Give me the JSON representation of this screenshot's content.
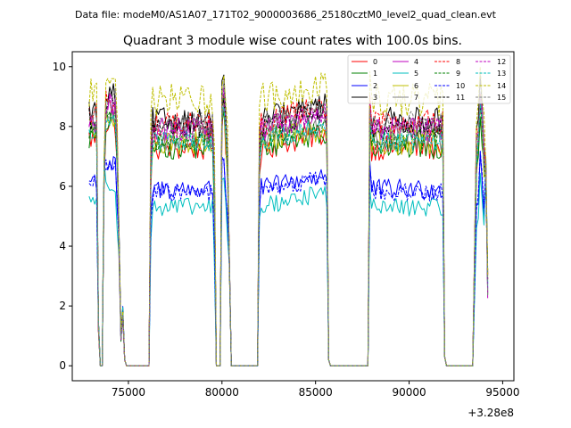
{
  "suptitle": "Data file: modeM0/AS1A07_171T02_9000003686_25180cztM0_level2_quad_clean.evt",
  "chart_data": {
    "type": "line",
    "title": "Quadrant 3 module wise count rates with 100.0s bins.",
    "xlabel": "",
    "ylabel": "",
    "x_offset_label": "+3.28e8",
    "xlim": [
      72000,
      95600
    ],
    "ylim": [
      -0.5,
      10.5
    ],
    "x_ticks": [
      75000,
      80000,
      85000,
      90000,
      95000
    ],
    "x_tick_labels": [
      "75000",
      "80000",
      "85000",
      "90000",
      "95000"
    ],
    "y_ticks": [
      0,
      2,
      4,
      6,
      8,
      10
    ],
    "y_tick_labels": [
      "0",
      "2",
      "4",
      "6",
      "8",
      "10"
    ],
    "grid": false,
    "legend_position": "top-right",
    "segments": [
      {
        "start": 72900,
        "end": 73400,
        "shape": "plateau"
      },
      {
        "start": 73400,
        "end": 73600,
        "shape": "dip"
      },
      {
        "start": 73800,
        "end": 74400,
        "shape": "plateau"
      },
      {
        "start": 74700,
        "end": 74800,
        "shape": "spike"
      },
      {
        "start": 76200,
        "end": 79600,
        "shape": "plateau"
      },
      {
        "start": 80000,
        "end": 80300,
        "shape": "plateau"
      },
      {
        "start": 82000,
        "end": 85600,
        "shape": "plateau"
      },
      {
        "start": 87900,
        "end": 91900,
        "shape": "plateau"
      },
      {
        "start": 93600,
        "end": 94200,
        "shape": "plateau"
      }
    ],
    "gaps_at_zero": [
      [
        73600,
        73700
      ],
      [
        74900,
        76100
      ],
      [
        79700,
        79900
      ],
      [
        80500,
        81900
      ],
      [
        85800,
        87800
      ],
      [
        91900,
        93500
      ]
    ],
    "series": [
      {
        "name": "0",
        "color": "#ff0000",
        "dash": "solid",
        "level": 7.3,
        "amp": 0.45
      },
      {
        "name": "1",
        "color": "#008000",
        "dash": "solid",
        "level": 7.3,
        "amp": 0.4
      },
      {
        "name": "2",
        "color": "#0000ff",
        "dash": "solid",
        "level": 5.9,
        "amp": 0.35
      },
      {
        "name": "3",
        "color": "#000000",
        "dash": "solid",
        "level": 8.2,
        "amp": 0.45
      },
      {
        "name": "4",
        "color": "#bf00bf",
        "dash": "solid",
        "level": 7.9,
        "amp": 0.4
      },
      {
        "name": "5",
        "color": "#00bfbf",
        "dash": "solid",
        "level": 5.3,
        "amp": 0.3
      },
      {
        "name": "6",
        "color": "#bfbf00",
        "dash": "solid",
        "level": 7.5,
        "amp": 0.45
      },
      {
        "name": "7",
        "color": "#808080",
        "dash": "solid",
        "level": 7.6,
        "amp": 0.4
      },
      {
        "name": "8",
        "color": "#ff0000",
        "dash": "dashed",
        "level": 8.1,
        "amp": 0.45
      },
      {
        "name": "9",
        "color": "#008000",
        "dash": "dashed",
        "level": 7.6,
        "amp": 0.4
      },
      {
        "name": "10",
        "color": "#0000ff",
        "dash": "dashed",
        "level": 5.8,
        "amp": 0.3
      },
      {
        "name": "11",
        "color": "#000000",
        "dash": "dashed",
        "level": 8.0,
        "amp": 0.4
      },
      {
        "name": "12",
        "color": "#bf00bf",
        "dash": "dashed",
        "level": 7.9,
        "amp": 0.4
      },
      {
        "name": "13",
        "color": "#00bfbf",
        "dash": "dashed",
        "level": 7.5,
        "amp": 0.35
      },
      {
        "name": "14",
        "color": "#bfbf00",
        "dash": "dashed",
        "level": 8.9,
        "amp": 0.55
      },
      {
        "name": "15",
        "color": "#808080",
        "dash": "dashed",
        "level": 8.1,
        "amp": 0.4
      }
    ]
  }
}
